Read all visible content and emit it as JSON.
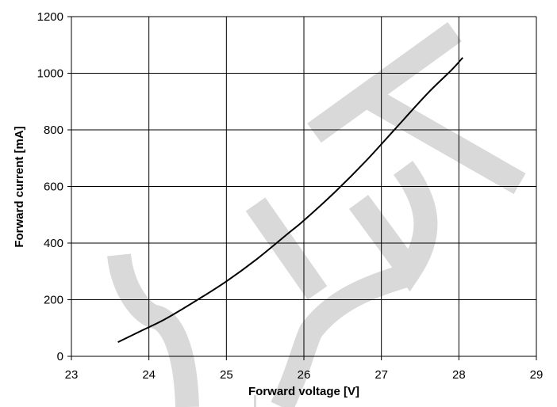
{
  "watermark": {
    "text": "OUT",
    "color": "#d9d9d9"
  },
  "chart_data": {
    "type": "line",
    "title": "",
    "xlabel": "Forward voltage [V]",
    "ylabel": "Forward current [mA]",
    "xlim": [
      23,
      29
    ],
    "ylim": [
      0,
      1200
    ],
    "xticks": [
      23,
      24,
      25,
      26,
      27,
      28,
      29
    ],
    "yticks": [
      0,
      200,
      400,
      600,
      800,
      1000,
      1200
    ],
    "grid": true,
    "legend": "none",
    "line_color": "#000000",
    "grid_color": "#000000",
    "series": [
      {
        "x": [
          23.6,
          23.9,
          24.2,
          24.6,
          25.0,
          25.4,
          25.8,
          26.0,
          26.4,
          26.8,
          27.2,
          27.6,
          27.9,
          28.05
        ],
        "y": [
          50,
          90,
          130,
          195,
          265,
          345,
          435,
          480,
          580,
          690,
          810,
          930,
          1010,
          1055
        ]
      }
    ]
  }
}
